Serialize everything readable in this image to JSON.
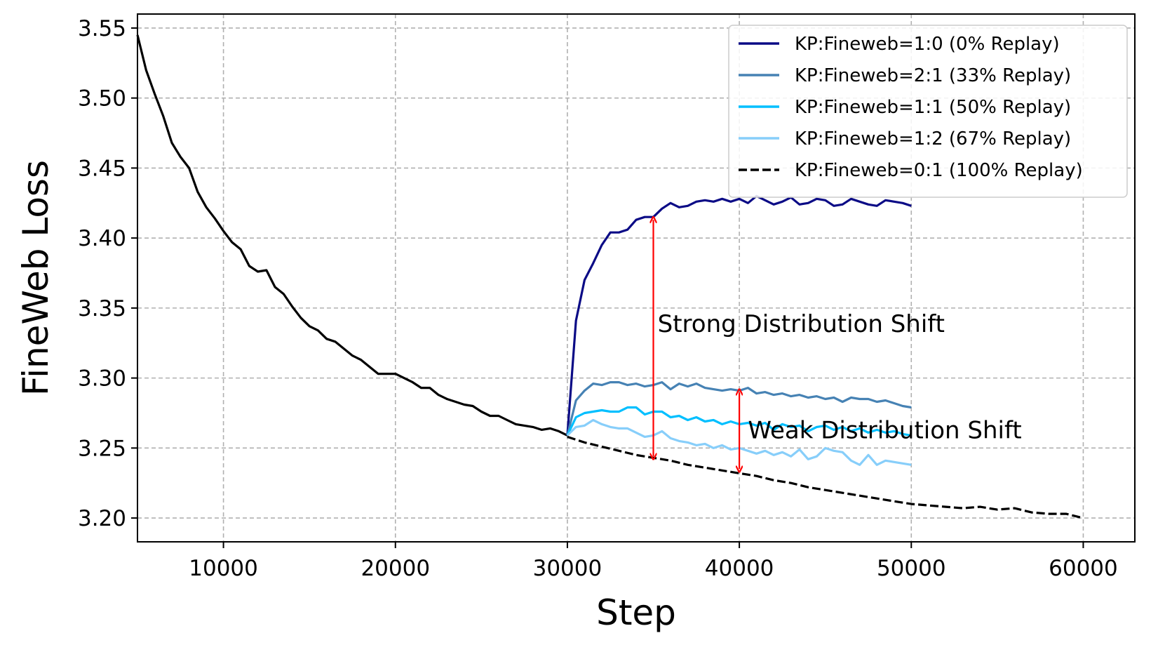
{
  "chart_data": {
    "type": "line",
    "title": "",
    "xlabel": "Step",
    "ylabel": "FineWeb Loss",
    "xlim": [
      5000,
      63000
    ],
    "ylim": [
      3.183,
      3.56
    ],
    "xticks": [
      10000,
      20000,
      30000,
      40000,
      50000,
      60000
    ],
    "yticks": [
      3.2,
      3.25,
      3.3,
      3.35,
      3.4,
      3.45,
      3.5,
      3.55
    ],
    "grid": true,
    "legend_position": "top-right",
    "pretrain_series": {
      "color": "#000000",
      "style": "solid",
      "x": [
        5000,
        5500,
        6000,
        6500,
        7000,
        7500,
        8000,
        8500,
        9000,
        9500,
        10000,
        10500,
        11000,
        11500,
        12000,
        12500,
        13000,
        13500,
        14000,
        14500,
        15000,
        15500,
        16000,
        16500,
        17000,
        17500,
        18000,
        18500,
        19000,
        19500,
        20000,
        20500,
        21000,
        21500,
        22000,
        22500,
        23000,
        23500,
        24000,
        24500,
        25000,
        25500,
        26000,
        26500,
        27000,
        27500,
        28000,
        28500,
        29000,
        29500,
        30000
      ],
      "y": [
        3.545,
        3.52,
        3.503,
        3.487,
        3.468,
        3.458,
        3.45,
        3.433,
        3.422,
        3.414,
        3.405,
        3.397,
        3.392,
        3.38,
        3.376,
        3.377,
        3.365,
        3.36,
        3.351,
        3.343,
        3.337,
        3.334,
        3.328,
        3.326,
        3.321,
        3.316,
        3.313,
        3.308,
        3.303,
        3.303,
        3.303,
        3.3,
        3.297,
        3.293,
        3.293,
        3.288,
        3.285,
        3.283,
        3.281,
        3.28,
        3.276,
        3.273,
        3.273,
        3.27,
        3.267,
        3.266,
        3.265,
        3.263,
        3.264,
        3.262,
        3.259
      ]
    },
    "series": [
      {
        "name": "KP:Fineweb=1:0 (0% Replay)",
        "color": "#0b0b86",
        "style": "solid",
        "x": [
          30000,
          30500,
          31000,
          31500,
          32000,
          32500,
          33000,
          33500,
          34000,
          34500,
          35000,
          35500,
          36000,
          36500,
          37000,
          37500,
          38000,
          38500,
          39000,
          39500,
          40000,
          40500,
          41000,
          41500,
          42000,
          42500,
          43000,
          43500,
          44000,
          44500,
          45000,
          45500,
          46000,
          46500,
          47000,
          47500,
          48000,
          48500,
          49000,
          49500,
          50000
        ],
        "y": [
          3.259,
          3.341,
          3.37,
          3.382,
          3.395,
          3.404,
          3.404,
          3.406,
          3.413,
          3.415,
          3.415,
          3.421,
          3.425,
          3.422,
          3.423,
          3.426,
          3.427,
          3.426,
          3.428,
          3.426,
          3.428,
          3.425,
          3.43,
          3.427,
          3.424,
          3.426,
          3.429,
          3.424,
          3.425,
          3.428,
          3.427,
          3.423,
          3.424,
          3.428,
          3.426,
          3.424,
          3.423,
          3.427,
          3.426,
          3.425,
          3.423
        ]
      },
      {
        "name": "KP:Fineweb=2:1 (33% Replay)",
        "color": "#4682b4",
        "style": "solid",
        "x": [
          30000,
          30500,
          31000,
          31500,
          32000,
          32500,
          33000,
          33500,
          34000,
          34500,
          35000,
          35500,
          36000,
          36500,
          37000,
          37500,
          38000,
          38500,
          39000,
          39500,
          40000,
          40500,
          41000,
          41500,
          42000,
          42500,
          43000,
          43500,
          44000,
          44500,
          45000,
          45500,
          46000,
          46500,
          47000,
          47500,
          48000,
          48500,
          49000,
          49500,
          50000
        ],
        "y": [
          3.259,
          3.284,
          3.291,
          3.296,
          3.295,
          3.297,
          3.297,
          3.295,
          3.296,
          3.294,
          3.295,
          3.297,
          3.292,
          3.296,
          3.294,
          3.296,
          3.293,
          3.292,
          3.291,
          3.292,
          3.291,
          3.293,
          3.289,
          3.29,
          3.288,
          3.289,
          3.287,
          3.288,
          3.286,
          3.287,
          3.285,
          3.286,
          3.283,
          3.286,
          3.285,
          3.285,
          3.283,
          3.284,
          3.282,
          3.28,
          3.279
        ]
      },
      {
        "name": "KP:Fineweb=1:1 (50% Replay)",
        "color": "#00bfff",
        "style": "solid",
        "x": [
          30000,
          30500,
          31000,
          31500,
          32000,
          32500,
          33000,
          33500,
          34000,
          34500,
          35000,
          35500,
          36000,
          36500,
          37000,
          37500,
          38000,
          38500,
          39000,
          39500,
          40000,
          40500,
          41000,
          41500,
          42000,
          42500,
          43000,
          43500,
          44000,
          44500,
          45000,
          45500,
          46000,
          46500,
          47000,
          47500,
          48000,
          48500,
          49000,
          49500,
          50000
        ],
        "y": [
          3.259,
          3.272,
          3.275,
          3.276,
          3.277,
          3.276,
          3.276,
          3.279,
          3.279,
          3.274,
          3.276,
          3.276,
          3.272,
          3.273,
          3.27,
          3.272,
          3.269,
          3.27,
          3.267,
          3.269,
          3.267,
          3.268,
          3.266,
          3.268,
          3.263,
          3.267,
          3.265,
          3.266,
          3.262,
          3.265,
          3.266,
          3.263,
          3.265,
          3.262,
          3.264,
          3.261,
          3.263,
          3.261,
          3.262,
          3.26,
          3.259
        ]
      },
      {
        "name": "KP:Fineweb=1:2 (67% Replay)",
        "color": "#87cefa",
        "style": "solid",
        "x": [
          30000,
          30500,
          31000,
          31500,
          32000,
          32500,
          33000,
          33500,
          34000,
          34500,
          35000,
          35500,
          36000,
          36500,
          37000,
          37500,
          38000,
          38500,
          39000,
          39500,
          40000,
          40500,
          41000,
          41500,
          42000,
          42500,
          43000,
          43500,
          44000,
          44500,
          45000,
          45500,
          46000,
          46500,
          47000,
          47500,
          48000,
          48500,
          49000,
          49500,
          50000
        ],
        "y": [
          3.259,
          3.265,
          3.266,
          3.27,
          3.267,
          3.265,
          3.264,
          3.264,
          3.261,
          3.258,
          3.259,
          3.262,
          3.257,
          3.255,
          3.254,
          3.252,
          3.253,
          3.25,
          3.252,
          3.249,
          3.25,
          3.248,
          3.246,
          3.248,
          3.245,
          3.247,
          3.244,
          3.249,
          3.242,
          3.244,
          3.25,
          3.248,
          3.247,
          3.241,
          3.238,
          3.245,
          3.238,
          3.241,
          3.24,
          3.239,
          3.238
        ]
      },
      {
        "name": "KP:Fineweb=0:1 (100% Replay)",
        "color": "#000000",
        "style": "dashed",
        "x": [
          30000,
          31000,
          32000,
          33000,
          34000,
          35000,
          36000,
          37000,
          38000,
          39000,
          40000,
          41000,
          42000,
          43000,
          44000,
          45000,
          46000,
          47000,
          48000,
          49000,
          50000,
          51000,
          52000,
          53000,
          54000,
          55000,
          56000,
          57000,
          58000,
          59000,
          60000
        ],
        "y": [
          3.258,
          3.254,
          3.251,
          3.248,
          3.245,
          3.243,
          3.241,
          3.238,
          3.236,
          3.234,
          3.232,
          3.23,
          3.227,
          3.225,
          3.222,
          3.22,
          3.218,
          3.216,
          3.214,
          3.212,
          3.21,
          3.209,
          3.208,
          3.207,
          3.208,
          3.206,
          3.207,
          3.204,
          3.203,
          3.203,
          3.2
        ]
      }
    ],
    "annotations": [
      {
        "text": "Strong Distribution Shift",
        "arrow_x": 35000,
        "y_from": 3.244,
        "y_to": 3.413,
        "text_x": 35250,
        "text_y": 3.333,
        "color": "#ff0000"
      },
      {
        "text": "Weak Distribution Shift",
        "arrow_x": 40000,
        "y_from": 3.235,
        "y_to": 3.29,
        "text_x": 40500,
        "text_y": 3.257,
        "color": "#ff0000"
      }
    ]
  }
}
